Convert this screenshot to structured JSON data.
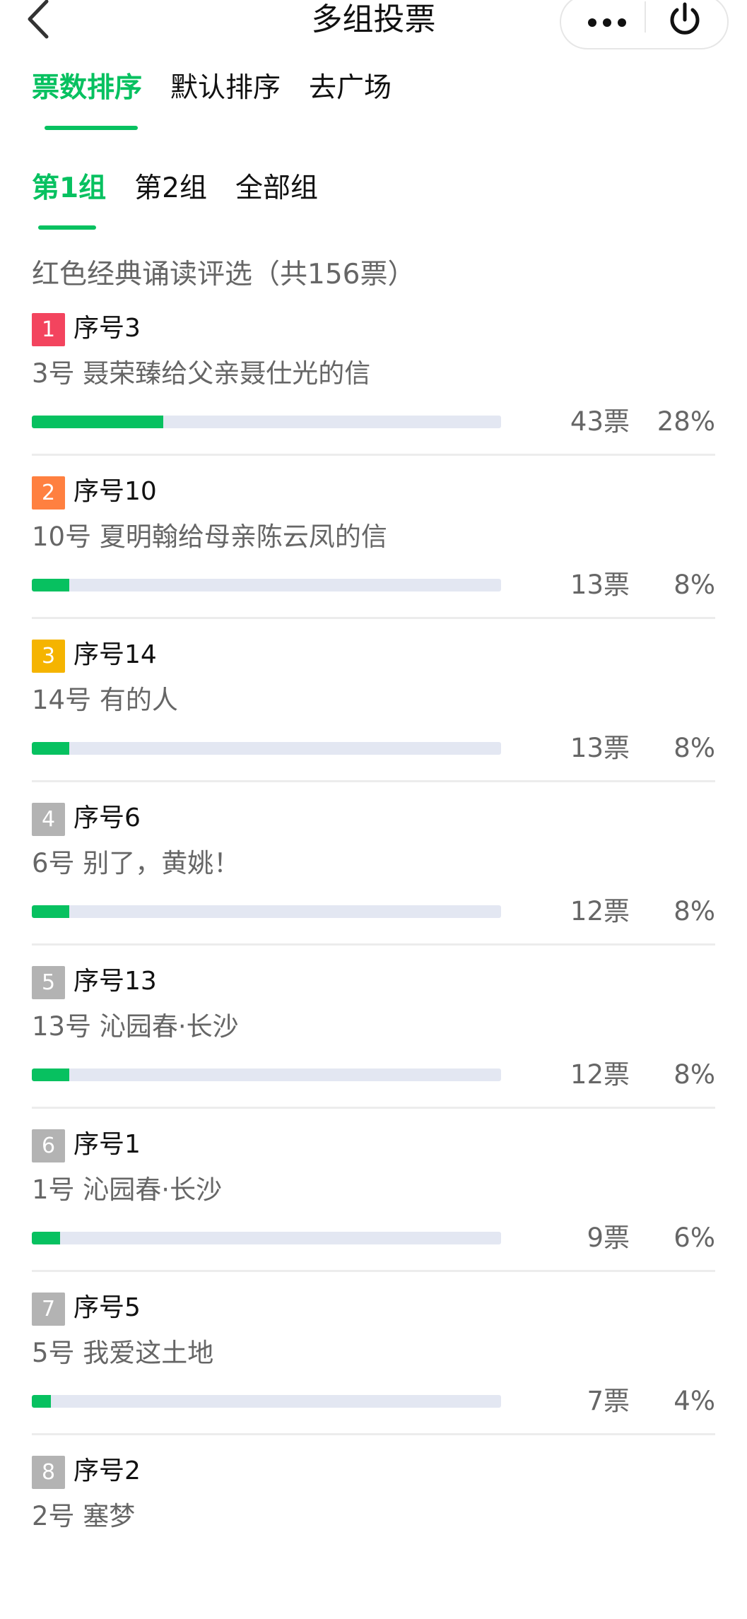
{
  "header": {
    "title": "多组投票",
    "back_icon": "chevron-left-icon",
    "more_icon": "more-dots-icon",
    "close_icon": "power-icon"
  },
  "sort_tabs": [
    {
      "label": "票数排序",
      "active": true
    },
    {
      "label": "默认排序",
      "active": false
    },
    {
      "label": "去广场",
      "active": false
    }
  ],
  "group_tabs": [
    {
      "label": "第1组",
      "active": true
    },
    {
      "label": "第2组",
      "active": false
    },
    {
      "label": "全部组",
      "active": false
    }
  ],
  "subtitle": "红色经典诵读评选（共156票）",
  "colors": {
    "accent": "#07c160",
    "rank1": "#f3445e",
    "rank2": "#ff8040",
    "rank3": "#f5b400",
    "rank_other": "#b3b3b3",
    "track": "#e3e7f2"
  },
  "items": [
    {
      "rank": "1",
      "label": "序号3",
      "name": "3号 聂荣臻给父亲聂仕光的信",
      "votes": "43票",
      "percent": "28%",
      "fill_percent": 28
    },
    {
      "rank": "2",
      "label": "序号10",
      "name": "10号 夏明翰给母亲陈云凤的信",
      "votes": "13票",
      "percent": "8%",
      "fill_percent": 8
    },
    {
      "rank": "3",
      "label": "序号14",
      "name": "14号 有的人",
      "votes": "13票",
      "percent": "8%",
      "fill_percent": 8
    },
    {
      "rank": "4",
      "label": "序号6",
      "name": "6号 别了，黄姚！",
      "votes": "12票",
      "percent": "8%",
      "fill_percent": 8
    },
    {
      "rank": "5",
      "label": "序号13",
      "name": "13号 沁园春·长沙",
      "votes": "12票",
      "percent": "8%",
      "fill_percent": 8
    },
    {
      "rank": "6",
      "label": "序号1",
      "name": "1号 沁园春·长沙",
      "votes": "9票",
      "percent": "6%",
      "fill_percent": 6
    },
    {
      "rank": "7",
      "label": "序号5",
      "name": "5号 我爱这土地",
      "votes": "7票",
      "percent": "4%",
      "fill_percent": 4
    },
    {
      "rank": "8",
      "label": "序号2",
      "name": "2号 塞梦"
    }
  ]
}
